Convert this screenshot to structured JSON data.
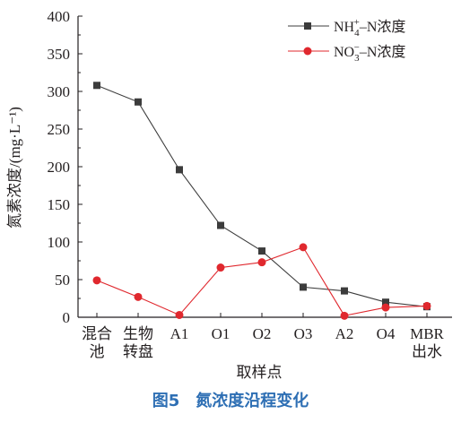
{
  "chart_data": {
    "type": "line",
    "categories": [
      "混合池",
      "生物转盘",
      "A1",
      "O1",
      "O2",
      "O3",
      "A2",
      "O4",
      "MBR出水"
    ],
    "category_lines": [
      [
        "混合",
        "池"
      ],
      [
        "生物",
        "转盘"
      ],
      [
        "A1"
      ],
      [
        "O1"
      ],
      [
        "O2"
      ],
      [
        "O3"
      ],
      [
        "A2"
      ],
      [
        "O4"
      ],
      [
        "MBR",
        "出水"
      ]
    ],
    "series": [
      {
        "name_parts": [
          "NH",
          "4",
          "+",
          "–N浓度"
        ],
        "color": "#3c3c3c",
        "marker": "square",
        "values": [
          308,
          286,
          196,
          122,
          88,
          40,
          35,
          20,
          14
        ]
      },
      {
        "name_parts": [
          "NO",
          "3",
          "−",
          "–N浓度"
        ],
        "color": "#e0282e",
        "marker": "circle",
        "values": [
          49,
          27,
          3,
          66,
          73,
          93,
          2,
          13,
          15
        ]
      }
    ],
    "xlabel": "取样点",
    "ylabel": "氮素浓度/(mg·L⁻¹)",
    "ylim": [
      0,
      400
    ],
    "yticks": [
      "0",
      "50",
      "100",
      "150",
      "200",
      "250",
      "300",
      "350",
      "400"
    ],
    "grid": false,
    "legend_position": "top-right"
  },
  "caption": "图5　氮浓度沿程变化"
}
